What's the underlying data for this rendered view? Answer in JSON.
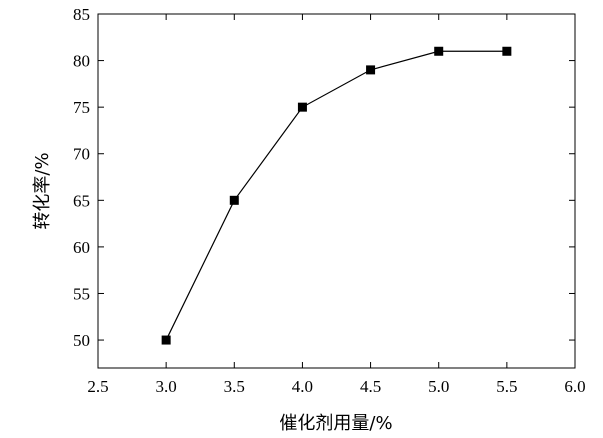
{
  "chart_data": {
    "type": "line",
    "xlabel": "催化剂用量/%",
    "ylabel": "转化率/%",
    "xlim": [
      2.5,
      6.0
    ],
    "ylim": [
      47,
      85
    ],
    "x_ticks": [
      "2.5",
      "3.0",
      "3.5",
      "4.0",
      "4.5",
      "5.0",
      "5.5",
      "6.0"
    ],
    "y_ticks": [
      "50",
      "55",
      "60",
      "65",
      "70",
      "75",
      "80",
      "85"
    ],
    "series": [
      {
        "x": [
          3.0,
          3.5,
          4.0,
          4.5,
          5.0,
          5.5
        ],
        "y": [
          50,
          65,
          75,
          79,
          81,
          81
        ],
        "marker": "square",
        "color": "#000000"
      }
    ],
    "grid": false,
    "legend": "none"
  }
}
